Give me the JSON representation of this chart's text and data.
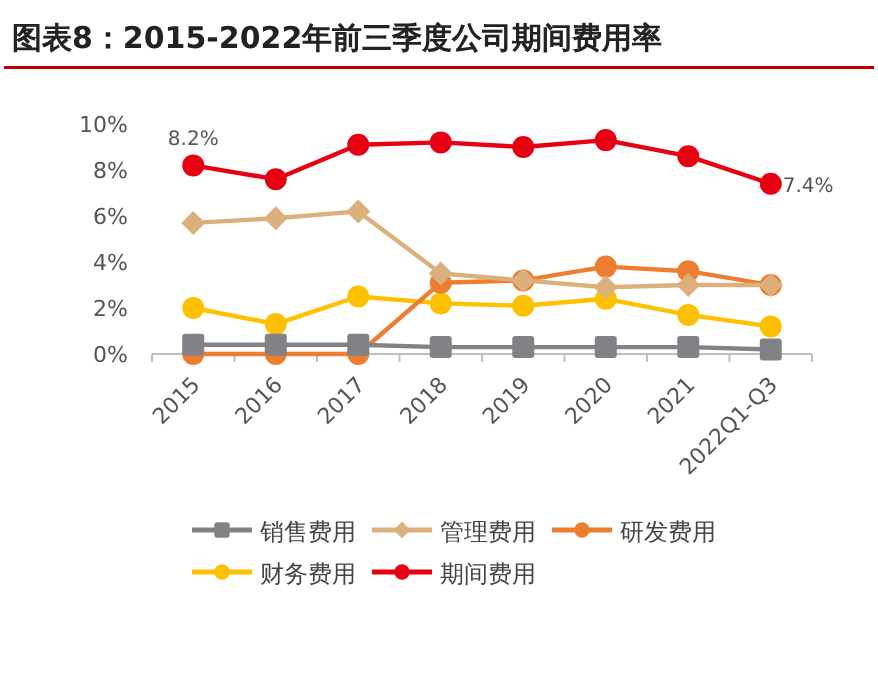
{
  "chart_data": {
    "type": "line",
    "title": "图表8：2015-2022年前三季度公司期间费用率",
    "categories": [
      "2015",
      "2016",
      "2017",
      "2018",
      "2019",
      "2020",
      "2021",
      "2022Q1-Q3"
    ],
    "series": [
      {
        "name": "销售费用",
        "color": "#808285",
        "marker": "square",
        "values": [
          0.4,
          0.4,
          0.4,
          0.3,
          0.3,
          0.3,
          0.3,
          0.2
        ]
      },
      {
        "name": "管理费用",
        "color": "#dbb07c",
        "marker": "diamond",
        "values": [
          5.7,
          5.9,
          6.2,
          3.5,
          3.2,
          2.9,
          3.0,
          3.0
        ]
      },
      {
        "name": "研发费用",
        "color": "#ed7d31",
        "marker": "circle",
        "values": [
          0,
          0,
          0,
          3.1,
          3.2,
          3.8,
          3.6,
          3.0
        ]
      },
      {
        "name": "财务费用",
        "color": "#ffc000",
        "marker": "circle",
        "values": [
          2.0,
          1.3,
          2.5,
          2.2,
          2.1,
          2.4,
          1.7,
          1.2
        ]
      },
      {
        "name": "期间费用",
        "color": "#e60012",
        "marker": "circle",
        "values": [
          8.2,
          7.6,
          9.1,
          9.2,
          9.0,
          9.3,
          8.6,
          7.4
        ],
        "value_labels": [
          "8.2%",
          null,
          null,
          null,
          null,
          null,
          null,
          "7.4%"
        ]
      }
    ],
    "ylim": [
      0,
      10
    ],
    "yticks": [
      {
        "value": 0,
        "label": "0%"
      },
      {
        "value": 2,
        "label": "2%"
      },
      {
        "value": 4,
        "label": "4%"
      },
      {
        "value": 6,
        "label": "6%"
      },
      {
        "value": 8,
        "label": "8%"
      },
      {
        "value": 10,
        "label": "10%"
      }
    ],
    "grid": false,
    "legend": "bottom",
    "line_style": "solid"
  }
}
